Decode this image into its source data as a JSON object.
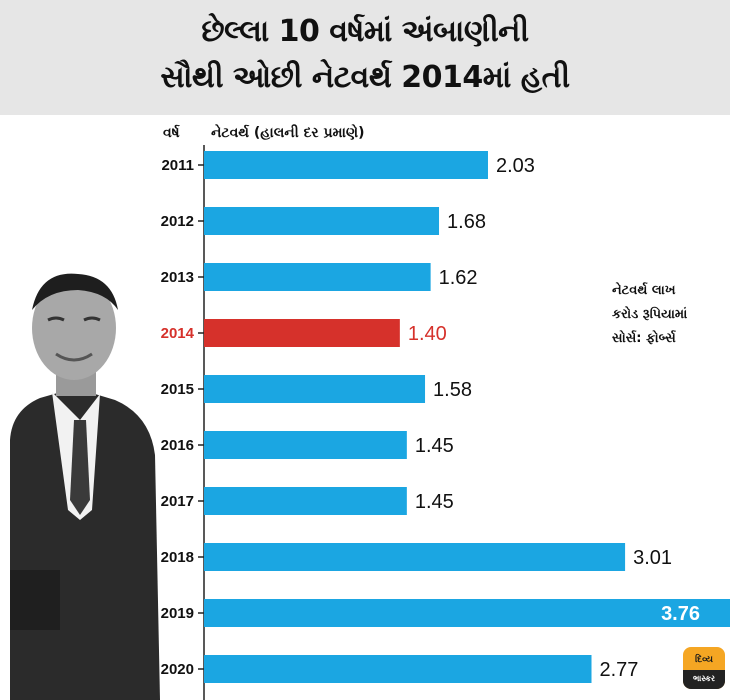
{
  "title": {
    "line1": "છેલ્લા 10 વર્ષમાં અંબાણીની",
    "line2": "સૌથી ઓછી નેટવર્થ 2014માં હતી"
  },
  "chart_data": {
    "type": "bar",
    "orientation": "horizontal",
    "year_header": "વર્ષ",
    "value_header": "નેટવર્થ (હાલની દર પ્રમાણે)",
    "categories": [
      "2011",
      "2012",
      "2013",
      "2014",
      "2015",
      "2016",
      "2017",
      "2018",
      "2019",
      "2020"
    ],
    "values": [
      2.03,
      1.68,
      1.62,
      1.4,
      1.58,
      1.45,
      1.45,
      3.01,
      3.76,
      2.77
    ],
    "value_labels": [
      "2.03",
      "1.68",
      "1.62",
      "1.40",
      "1.58",
      "1.45",
      "1.45",
      "3.01",
      "3.76",
      "2.77"
    ],
    "highlight_index": 3,
    "label_inside_index": 8,
    "xlim": [
      0,
      3.76
    ],
    "colors": {
      "bar": "#1ba6e2",
      "highlight": "#d6312b",
      "highlight_text": "#d6312b",
      "text": "#111111",
      "inside_text": "#ffffff"
    }
  },
  "note": {
    "line1": "નેટવર્થ લાખ",
    "line2": "કરોડ રૂપિયામાં",
    "line3": "સોર્સ: ફોર્બ્સ"
  },
  "logo": {
    "top": "દિવ્ય",
    "bottom": "ભાસ્કર"
  }
}
